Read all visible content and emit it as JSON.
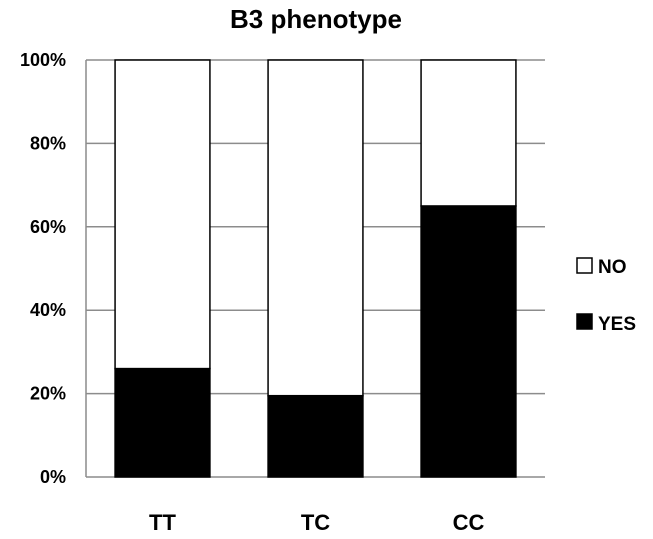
{
  "chart_data": {
    "type": "bar",
    "stacked": true,
    "percent": true,
    "title": "B3 phenotype",
    "categories": [
      "TT",
      "TC",
      "CC"
    ],
    "series": [
      {
        "name": "YES",
        "color": "#000000",
        "values": [
          26,
          19.5,
          65
        ]
      },
      {
        "name": "NO",
        "color": "#ffffff",
        "values": [
          74,
          80.5,
          35
        ]
      }
    ],
    "y_ticks": [
      "0%",
      "20%",
      "40%",
      "60%",
      "80%",
      "100%"
    ],
    "ylim": [
      0,
      100
    ],
    "grid": true,
    "legend": {
      "position": "right",
      "entries": [
        "NO",
        "YES"
      ]
    }
  }
}
